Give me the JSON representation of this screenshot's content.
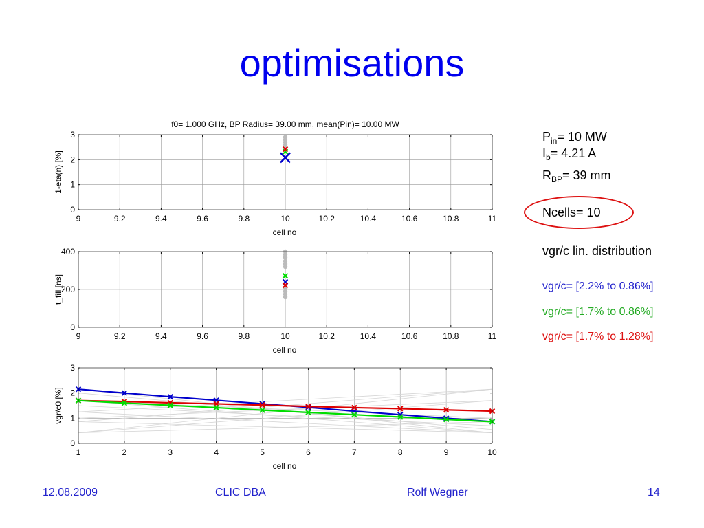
{
  "slide": {
    "title": "optimisations",
    "footer": {
      "date": "12.08.2009",
      "event": "CLIC DBA",
      "author": "Rolf Wegner",
      "page": "14"
    }
  },
  "params": {
    "pin_label": "P",
    "pin_sub": "in",
    "pin_value": "= 10 MW",
    "ib_label": "I",
    "ib_sub": "b",
    "ib_value": "= 4.21 A",
    "rbp_label": "R",
    "rbp_sub": "BP",
    "rbp_value": "= 39 mm",
    "ncells": "Ncells= 10",
    "distribution": "vgr/c  lin. distribution",
    "legend": [
      {
        "text": "vgr/c= [2.2% to 0.86%]",
        "color": "#2222cc"
      },
      {
        "text": "vgr/c= [1.7% to 0.86%]",
        "color": "#22aa22"
      },
      {
        "text": "vgr/c= [1.7% to 1.28%]",
        "color": "#dd1111"
      }
    ],
    "highlight_color": "#dd1111"
  },
  "colors": {
    "blue": "#0000cc",
    "green": "#00dd00",
    "red": "#dd0000",
    "gray": "#bbbbbb",
    "title": "#0000ee",
    "footer": "#2222cc"
  },
  "chart_data": [
    {
      "type": "scatter",
      "title": "f0= 1.000 GHz,  BP Radius= 39.00 mm,  mean(Pin)= 10.00 MW",
      "xlabel": "cell no",
      "ylabel": "1-eta(n) [%]",
      "xlim": [
        9,
        11
      ],
      "ylim": [
        0,
        3
      ],
      "xticks": [
        "9",
        "9.2",
        "9.4",
        "9.6",
        "9.8",
        "10",
        "10.2",
        "10.4",
        "10.6",
        "10.8",
        "11"
      ],
      "yticks": [
        "0",
        "1",
        "2",
        "3"
      ],
      "grid": true,
      "background_gray_values": [
        2.45,
        2.6,
        2.7,
        2.8,
        2.9
      ],
      "series": [
        {
          "name": "blue",
          "x": [
            10
          ],
          "y": [
            2.08
          ]
        },
        {
          "name": "green",
          "x": [
            10
          ],
          "y": [
            2.32
          ]
        },
        {
          "name": "red",
          "x": [
            10
          ],
          "y": [
            2.42
          ]
        }
      ]
    },
    {
      "type": "scatter",
      "title": "",
      "xlabel": "cell no",
      "ylabel": "t_fill [ns]",
      "xlim": [
        9,
        11
      ],
      "ylim": [
        0,
        400
      ],
      "xticks": [
        "9",
        "9.2",
        "9.4",
        "9.6",
        "9.8",
        "10",
        "10.2",
        "10.4",
        "10.6",
        "10.8",
        "11"
      ],
      "yticks": [
        "0",
        "200",
        "400"
      ],
      "grid": true,
      "background_gray_values": [
        160,
        175,
        190,
        205,
        320,
        335,
        350,
        370,
        385,
        400
      ],
      "series": [
        {
          "name": "blue",
          "x": [
            10
          ],
          "y": [
            240
          ]
        },
        {
          "name": "green",
          "x": [
            10
          ],
          "y": [
            272
          ]
        },
        {
          "name": "red",
          "x": [
            10
          ],
          "y": [
            222
          ]
        }
      ]
    },
    {
      "type": "line",
      "title": "",
      "xlabel": "cell no",
      "ylabel": "vgr/c0 [%]",
      "xlim": [
        1,
        10
      ],
      "ylim": [
        0,
        3
      ],
      "xticks": [
        "1",
        "2",
        "3",
        "4",
        "5",
        "6",
        "7",
        "8",
        "9",
        "10"
      ],
      "yticks": [
        "0",
        "1",
        "2",
        "3"
      ],
      "grid": true,
      "x": [
        1,
        2,
        3,
        4,
        5,
        6,
        7,
        8,
        9,
        10
      ],
      "background_gray_pairs": [
        [
          2.15,
          0.42
        ],
        [
          2.15,
          0.86
        ],
        [
          2.0,
          0.55
        ],
        [
          1.7,
          0.42
        ],
        [
          1.7,
          1.0
        ],
        [
          1.25,
          2.15
        ],
        [
          0.86,
          2.15
        ],
        [
          0.42,
          2.15
        ],
        [
          0.42,
          1.7
        ],
        [
          1.0,
          1.7
        ],
        [
          0.86,
          0.42
        ],
        [
          0.42,
          0.86
        ],
        [
          1.25,
          0.42
        ],
        [
          1.5,
          0.7
        ]
      ],
      "series": [
        {
          "name": "blue",
          "values": [
            2.15,
            2.0,
            1.85,
            1.71,
            1.57,
            1.43,
            1.28,
            1.14,
            1.0,
            0.86
          ]
        },
        {
          "name": "red",
          "values": [
            1.7,
            1.66,
            1.61,
            1.57,
            1.52,
            1.47,
            1.42,
            1.38,
            1.33,
            1.28
          ]
        },
        {
          "name": "green",
          "values": [
            1.7,
            1.6,
            1.51,
            1.42,
            1.32,
            1.23,
            1.14,
            1.05,
            0.95,
            0.86
          ]
        }
      ]
    }
  ]
}
